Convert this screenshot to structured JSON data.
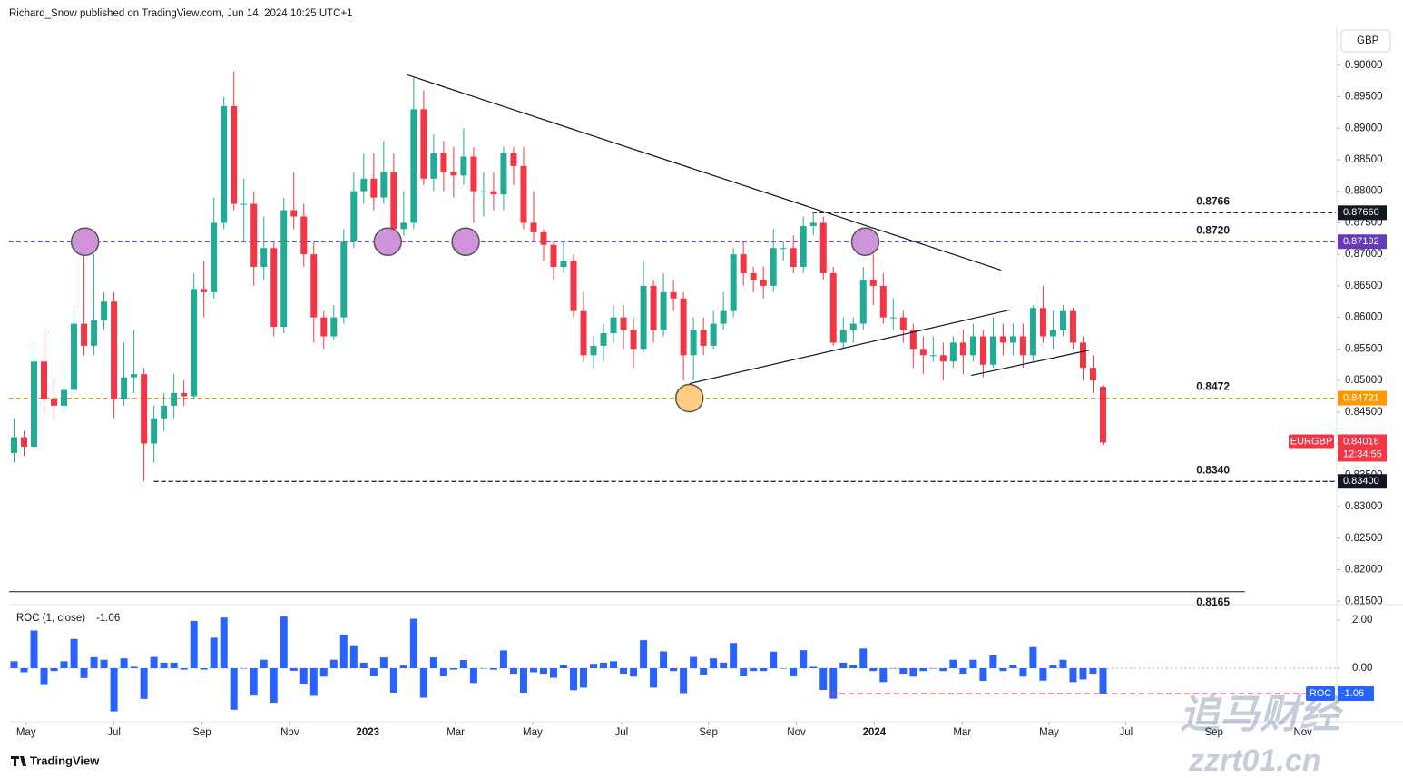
{
  "header": "Richard_Snow published on TradingView.com, Jun 14, 2024 10:25 UTC+1",
  "currency": "GBP",
  "brand": "TradingView",
  "watermark": {
    "name": "追马财经",
    "url": "zzrt01.cn"
  },
  "chart_data": [
    {
      "type": "candlestick",
      "symbol": "EURGBP",
      "last_price": "0.84016",
      "countdown": "12:34:55",
      "up_color": "#22ab94",
      "down_color": "#f23645",
      "symbol_color": "#f23645",
      "categories": [
        null,
        null,
        null,
        null,
        null,
        null,
        null,
        null,
        null,
        null,
        null,
        null,
        null,
        null,
        null,
        null,
        null,
        null,
        null,
        null,
        null,
        null,
        null,
        null,
        null,
        null,
        null,
        null,
        null,
        null,
        null,
        null,
        null,
        null,
        null,
        null,
        null,
        null,
        null,
        null,
        null,
        null,
        null,
        null,
        null,
        null,
        null,
        null,
        null,
        null,
        null,
        null,
        null,
        null,
        null,
        null,
        null,
        null,
        null,
        null,
        null,
        null,
        null,
        null,
        null,
        null,
        null,
        null,
        null,
        null,
        null,
        null,
        null,
        null,
        null,
        null,
        null,
        null,
        null,
        null,
        null,
        null,
        null,
        null,
        null,
        null,
        null,
        null,
        null,
        null,
        null,
        null,
        null,
        null,
        null,
        null,
        null,
        null,
        null,
        null,
        null,
        null,
        null,
        null,
        null,
        null,
        null,
        null,
        null,
        null
      ],
      "open": [
        0.8385,
        0.841,
        0.8395,
        0.853,
        0.847,
        0.846,
        0.8485,
        0.859,
        0.8555,
        0.8595,
        0.8625,
        0.847,
        0.8505,
        0.851,
        0.84,
        0.844,
        0.846,
        0.848,
        0.8475,
        0.8645,
        0.864,
        0.875,
        0.8935,
        0.878,
        0.878,
        0.868,
        0.871,
        0.8585,
        0.877,
        0.876,
        0.87,
        0.86,
        0.857,
        0.86,
        0.872,
        0.88,
        0.882,
        0.879,
        0.883,
        0.874,
        0.875,
        0.893,
        0.882,
        0.886,
        0.883,
        0.8825,
        0.8855,
        0.88,
        0.88,
        0.8795,
        0.886,
        0.884,
        0.875,
        0.8735,
        0.8715,
        0.868,
        0.869,
        0.861,
        0.854,
        0.8555,
        0.8575,
        0.86,
        0.858,
        0.855,
        0.865,
        0.858,
        0.864,
        0.863,
        0.854,
        0.858,
        0.8555,
        0.859,
        0.861,
        0.87,
        0.867,
        0.866,
        0.865,
        0.871,
        0.871,
        0.868,
        0.8745,
        0.875,
        0.867,
        0.856,
        0.858,
        0.859,
        0.866,
        0.865,
        0.86,
        0.86,
        0.858,
        0.855,
        0.854,
        0.854,
        0.853,
        0.856,
        0.854,
        0.857,
        0.8525,
        0.857,
        0.856,
        0.857,
        0.854,
        0.8615,
        0.857,
        0.858,
        0.861,
        0.856,
        0.852,
        0.849
      ],
      "high": [
        0.844,
        0.842,
        0.856,
        0.858,
        0.85,
        0.852,
        0.861,
        0.872,
        0.87,
        0.864,
        0.864,
        0.856,
        0.858,
        0.852,
        0.846,
        0.848,
        0.851,
        0.85,
        0.867,
        0.869,
        0.879,
        0.895,
        0.899,
        0.882,
        0.88,
        0.876,
        0.872,
        0.879,
        0.883,
        0.878,
        0.872,
        0.861,
        0.862,
        0.874,
        0.883,
        0.886,
        0.886,
        0.888,
        0.886,
        0.88,
        0.898,
        0.896,
        0.889,
        0.888,
        0.887,
        0.89,
        0.887,
        0.883,
        0.883,
        0.887,
        0.887,
        0.887,
        0.88,
        0.874,
        0.872,
        0.872,
        0.87,
        0.864,
        0.857,
        0.859,
        0.862,
        0.862,
        0.86,
        0.869,
        0.866,
        0.867,
        0.866,
        0.864,
        0.86,
        0.86,
        0.861,
        0.864,
        0.871,
        0.872,
        0.868,
        0.868,
        0.874,
        0.872,
        0.873,
        0.876,
        0.8766,
        0.876,
        0.868,
        0.86,
        0.86,
        0.868,
        0.87,
        0.867,
        0.863,
        0.861,
        0.859,
        0.857,
        0.857,
        0.856,
        0.857,
        0.858,
        0.859,
        0.858,
        0.86,
        0.859,
        0.859,
        0.859,
        0.862,
        0.865,
        0.861,
        0.862,
        0.8615,
        0.857,
        0.854,
        0.8492
      ],
      "low": [
        0.837,
        0.838,
        0.839,
        0.845,
        0.844,
        0.845,
        0.848,
        0.854,
        0.854,
        0.858,
        0.844,
        0.846,
        0.848,
        0.834,
        0.837,
        0.842,
        0.844,
        0.846,
        0.847,
        0.86,
        0.863,
        0.874,
        0.877,
        0.872,
        0.865,
        0.866,
        0.857,
        0.8575,
        0.874,
        0.868,
        0.856,
        0.855,
        0.8565,
        0.859,
        0.871,
        0.878,
        0.877,
        0.878,
        0.872,
        0.873,
        0.874,
        0.881,
        0.88,
        0.88,
        0.879,
        0.881,
        0.875,
        0.876,
        0.877,
        0.877,
        0.881,
        0.874,
        0.872,
        0.869,
        0.866,
        0.867,
        0.86,
        0.853,
        0.852,
        0.853,
        0.856,
        0.855,
        0.852,
        0.8545,
        0.856,
        0.857,
        0.861,
        0.85,
        0.85,
        0.854,
        0.855,
        0.858,
        0.86,
        0.865,
        0.864,
        0.863,
        0.864,
        0.869,
        0.867,
        0.867,
        0.873,
        0.866,
        0.8555,
        0.855,
        0.856,
        0.858,
        0.862,
        0.859,
        0.858,
        0.856,
        0.852,
        0.851,
        0.853,
        0.85,
        0.852,
        0.851,
        0.853,
        0.8505,
        0.852,
        0.854,
        0.854,
        0.852,
        0.853,
        0.856,
        0.855,
        0.857,
        0.855,
        0.85,
        0.848,
        0.8398
      ],
      "close": [
        0.841,
        0.8395,
        0.853,
        0.847,
        0.846,
        0.8485,
        0.859,
        0.8555,
        0.8595,
        0.8625,
        0.847,
        0.8505,
        0.851,
        0.84,
        0.844,
        0.846,
        0.848,
        0.8475,
        0.8645,
        0.864,
        0.875,
        0.8935,
        0.878,
        0.878,
        0.868,
        0.871,
        0.8585,
        0.877,
        0.876,
        0.87,
        0.86,
        0.857,
        0.86,
        0.872,
        0.88,
        0.882,
        0.879,
        0.883,
        0.874,
        0.875,
        0.893,
        0.882,
        0.886,
        0.883,
        0.8825,
        0.8855,
        0.88,
        0.88,
        0.8795,
        0.886,
        0.884,
        0.875,
        0.8735,
        0.8715,
        0.868,
        0.869,
        0.861,
        0.854,
        0.8555,
        0.8575,
        0.86,
        0.858,
        0.855,
        0.865,
        0.858,
        0.864,
        0.863,
        0.854,
        0.858,
        0.8555,
        0.859,
        0.861,
        0.87,
        0.867,
        0.866,
        0.865,
        0.871,
        0.871,
        0.868,
        0.8745,
        0.875,
        0.867,
        0.856,
        0.858,
        0.859,
        0.866,
        0.865,
        0.86,
        0.86,
        0.858,
        0.855,
        0.854,
        0.854,
        0.853,
        0.856,
        0.854,
        0.857,
        0.8525,
        0.857,
        0.856,
        0.857,
        0.854,
        0.8615,
        0.857,
        0.858,
        0.861,
        0.856,
        0.852,
        0.85,
        0.84016
      ],
      "xlim": [
        -0.5,
        132.3
      ],
      "ylim": [
        0.8146,
        0.9063
      ],
      "xticks": [
        {
          "value": 1.2,
          "label": "May"
        },
        {
          "value": 10.0,
          "label": "Jul"
        },
        {
          "value": 18.8,
          "label": "Sep"
        },
        {
          "value": 27.6,
          "label": "Nov"
        },
        {
          "value": 35.4,
          "label": "2023"
        },
        {
          "value": 44.2,
          "label": "Mar"
        },
        {
          "value": 51.9,
          "label": "May"
        },
        {
          "value": 60.8,
          "label": "Jul"
        },
        {
          "value": 69.5,
          "label": "Sep"
        },
        {
          "value": 78.3,
          "label": "Nov"
        },
        {
          "value": 86.1,
          "label": "2024"
        },
        {
          "value": 94.9,
          "label": "Mar"
        },
        {
          "value": 103.6,
          "label": "May"
        },
        {
          "value": 111.3,
          "label": "Jul"
        },
        {
          "value": 120.1,
          "label": "Sep"
        },
        {
          "value": 129.0,
          "label": "Nov"
        }
      ],
      "yticks": [
        {
          "value": 0.9,
          "label": "0.90000"
        },
        {
          "value": 0.895,
          "label": "0.89500"
        },
        {
          "value": 0.89,
          "label": "0.89000"
        },
        {
          "value": 0.885,
          "label": "0.88500"
        },
        {
          "value": 0.88,
          "label": "0.88000"
        },
        {
          "value": 0.875,
          "label": "0.87500"
        },
        {
          "value": 0.87,
          "label": "0.87000"
        },
        {
          "value": 0.865,
          "label": "0.86500"
        },
        {
          "value": 0.86,
          "label": "0.86000"
        },
        {
          "value": 0.855,
          "label": "0.85500"
        },
        {
          "value": 0.85,
          "label": "0.85000"
        },
        {
          "value": 0.845,
          "label": "0.84500"
        },
        {
          "value": 0.84,
          "label": "0.84000"
        },
        {
          "value": 0.835,
          "label": "0.83500"
        },
        {
          "value": 0.83,
          "label": "0.83000"
        },
        {
          "value": 0.825,
          "label": "0.82500"
        },
        {
          "value": 0.82,
          "label": "0.82000"
        },
        {
          "value": 0.815,
          "label": "0.81500"
        }
      ],
      "levels": [
        {
          "value": 0.8766,
          "label": "0.8766",
          "tag": "0.87660",
          "color": "#131722",
          "style": "dashed",
          "label_position": "above",
          "x_range": [
            79.9,
            132.3
          ]
        },
        {
          "value": 0.872,
          "label": "0.8720",
          "tag": "0.87192",
          "color": "#673ab7",
          "style": "dashed",
          "label_position": "above",
          "x_range": [
            -0.5,
            132.3
          ]
        },
        {
          "value": 0.8472,
          "label": "0.8472",
          "tag": "0.84721",
          "color": "#ff9800",
          "style": "dashed",
          "label_position": "above",
          "x_range": [
            -0.5,
            132.3
          ]
        },
        {
          "value": 0.834,
          "label": "0.8340",
          "tag": "0.83400",
          "color": "#131722",
          "style": "dashed",
          "label_position": "above",
          "x_range": [
            14.0,
            132.3
          ]
        },
        {
          "value": 0.8165,
          "label": "0.8165",
          "color": "#131722",
          "style": "solid",
          "label_position": "below",
          "x_range": [
            -0.5,
            123.2
          ]
        }
      ],
      "trendlines": [
        {
          "x": [
            39.3,
            98.8
          ],
          "y": [
            0.8985,
            0.8675
          ]
        },
        {
          "x": [
            67.6,
            99.7
          ],
          "y": [
            0.8495,
            0.8612
          ]
        },
        {
          "x": [
            95.8,
            107.6
          ],
          "y": [
            0.8508,
            0.8548
          ]
        }
      ],
      "circles": [
        {
          "x": 7.1,
          "y": 0.872,
          "color": "#ce93d8"
        },
        {
          "x": 37.4,
          "y": 0.872,
          "color": "#ce93d8"
        },
        {
          "x": 45.2,
          "y": 0.872,
          "color": "#ce93d8"
        },
        {
          "x": 85.2,
          "y": 0.872,
          "color": "#ce93d8"
        },
        {
          "x": 67.6,
          "y": 0.8472,
          "color": "#ffcc80"
        }
      ]
    },
    {
      "type": "bar",
      "title": "ROC (1, close)",
      "last_label": "-1.06",
      "tag_name": "ROC",
      "color": "#2962ff",
      "level_color": "#f23645",
      "values": [
        0.29,
        -0.17,
        1.57,
        -0.7,
        -0.12,
        0.29,
        1.22,
        -0.41,
        0.46,
        0.35,
        -1.8,
        0.41,
        0.06,
        -1.28,
        0.47,
        0.23,
        0.23,
        -0.06,
        1.97,
        -0.06,
        1.27,
        2.11,
        -1.73,
        0,
        -1.14,
        0.35,
        -1.44,
        2.15,
        -0.11,
        -0.68,
        -1.15,
        -0.35,
        0.35,
        1.4,
        0.92,
        0.23,
        -0.34,
        0.45,
        -1.02,
        0.11,
        2.06,
        -1.23,
        0.45,
        -0.34,
        -0.06,
        0.34,
        -0.62,
        0,
        -0.06,
        0.74,
        -0.23,
        -1.02,
        -0.17,
        -0.23,
        -0.4,
        0.12,
        -0.92,
        -0.81,
        0.18,
        0.23,
        0.29,
        -0.23,
        -0.35,
        1.17,
        -0.81,
        0.7,
        -0.12,
        -1.04,
        0.47,
        -0.29,
        0.41,
        0.23,
        1.05,
        -0.34,
        -0.12,
        -0.12,
        0.69,
        0,
        -0.34,
        0.75,
        0.06,
        -0.91,
        -1.27,
        0.23,
        0.12,
        0.82,
        -0.12,
        -0.58,
        0,
        -0.23,
        -0.35,
        -0.12,
        0,
        -0.12,
        0.35,
        -0.23,
        0.35,
        -0.53,
        0.53,
        -0.12,
        0.12,
        -0.35,
        0.88,
        -0.52,
        0.12,
        0.35,
        -0.58,
        -0.47,
        -0.23,
        -1.06
      ],
      "level": {
        "value": -1.06,
        "x_range": [
          81.7,
          132.3
        ]
      },
      "ylim": [
        -2.23,
        2.57
      ],
      "yticks": [
        {
          "value": 2,
          "label": "2.00"
        },
        {
          "value": 0,
          "label": "0.00"
        }
      ]
    }
  ]
}
